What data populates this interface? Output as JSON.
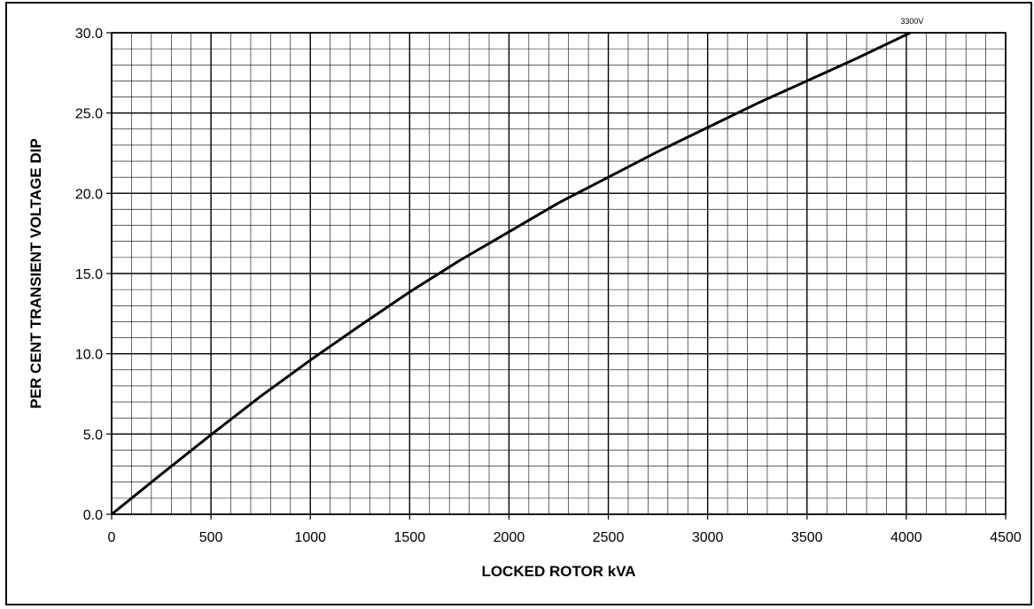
{
  "chart_data": {
    "type": "line",
    "title": "",
    "xlabel": "LOCKED ROTOR kVA",
    "ylabel": "PER CENT TRANSIENT VOLTAGE DIP",
    "xlim": [
      0,
      4500
    ],
    "ylim": [
      0,
      30
    ],
    "x_ticks": [
      "0",
      "500",
      "1000",
      "1500",
      "2000",
      "2500",
      "3000",
      "3500",
      "4000",
      "4500"
    ],
    "y_ticks": [
      "0.0",
      "5.0",
      "10.0",
      "15.0",
      "20.0",
      "25.0",
      "30.0"
    ],
    "grid": true,
    "series": [
      {
        "name": "3300V",
        "x": [
          0,
          250,
          500,
          750,
          1000,
          1250,
          1500,
          1750,
          2000,
          2250,
          2500,
          2750,
          3000,
          3250,
          3500,
          3750,
          4020
        ],
        "y": [
          0,
          2.5,
          4.95,
          7.35,
          9.6,
          11.75,
          13.85,
          15.8,
          17.6,
          19.4,
          21.0,
          22.6,
          24.1,
          25.6,
          27.0,
          28.4,
          30.0
        ]
      }
    ],
    "annotations": [
      {
        "text": "3300V",
        "x": 4020,
        "y": 30.0
      }
    ]
  }
}
